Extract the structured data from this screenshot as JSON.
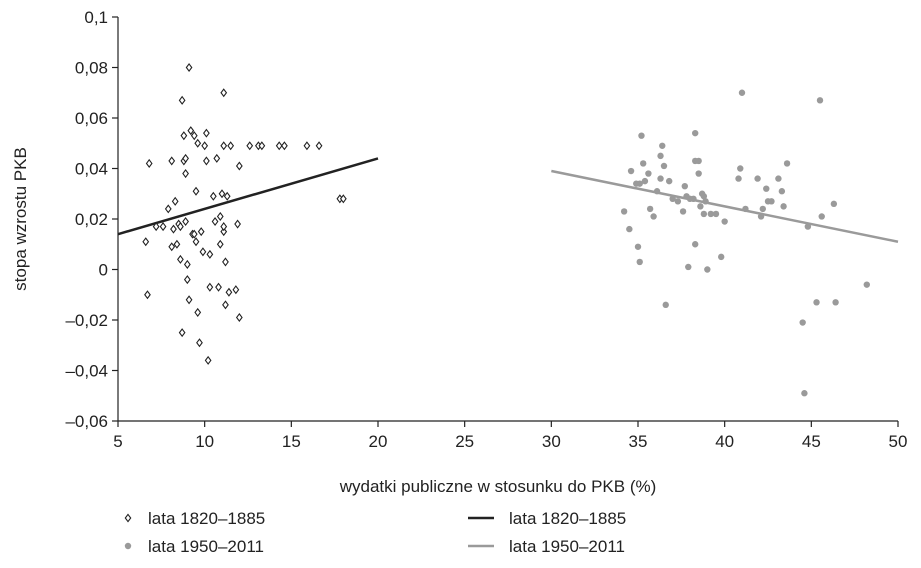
{
  "chart_data": {
    "type": "scatter",
    "title": "",
    "xlabel": "wydatki publiczne w stosunku do PKB (%)",
    "ylabel": "stopa wzrostu PKB",
    "xlim": [
      5,
      50
    ],
    "ylim": [
      -0.06,
      0.1
    ],
    "x_ticks": [
      5,
      10,
      15,
      20,
      25,
      30,
      35,
      40,
      45,
      50
    ],
    "x_tick_labels": [
      "5",
      "10",
      "15",
      "20",
      "25",
      "30",
      "35",
      "40",
      "45",
      "50"
    ],
    "y_ticks": [
      -0.06,
      -0.04,
      -0.02,
      0,
      0.02,
      0.04,
      0.06,
      0.08,
      0.1
    ],
    "y_tick_labels": [
      "–0,06",
      "–0,04",
      "–0,02",
      "0",
      "0,02",
      "0,04",
      "0,06",
      "0,08",
      "0,1"
    ],
    "grid": false,
    "legend_position": "bottom",
    "series": [
      {
        "name": "lata 1820–1885",
        "kind": "scatter",
        "marker": "diamond-open",
        "color": "#222222",
        "points": [
          [
            6.6,
            0.011
          ],
          [
            6.7,
            -0.01
          ],
          [
            6.8,
            0.042
          ],
          [
            7.2,
            0.017
          ],
          [
            7.6,
            0.017
          ],
          [
            7.9,
            0.024
          ],
          [
            8.1,
            0.043
          ],
          [
            8.1,
            0.009
          ],
          [
            8.2,
            0.016
          ],
          [
            8.3,
            0.027
          ],
          [
            8.4,
            0.01
          ],
          [
            8.5,
            0.018
          ],
          [
            8.6,
            0.004
          ],
          [
            8.6,
            0.017
          ],
          [
            8.7,
            -0.025
          ],
          [
            8.7,
            0.067
          ],
          [
            8.8,
            0.043
          ],
          [
            8.8,
            0.053
          ],
          [
            8.9,
            0.019
          ],
          [
            8.9,
            0.038
          ],
          [
            8.9,
            0.044
          ],
          [
            9.0,
            -0.004
          ],
          [
            9.0,
            0.002
          ],
          [
            9.1,
            0.08
          ],
          [
            9.1,
            -0.012
          ],
          [
            9.2,
            0.055
          ],
          [
            9.3,
            0.014
          ],
          [
            9.4,
            0.053
          ],
          [
            9.4,
            0.014
          ],
          [
            9.5,
            0.011
          ],
          [
            9.5,
            0.031
          ],
          [
            9.6,
            -0.017
          ],
          [
            9.6,
            0.05
          ],
          [
            9.7,
            -0.029
          ],
          [
            9.8,
            0.015
          ],
          [
            9.9,
            0.007
          ],
          [
            10.0,
            0.049
          ],
          [
            10.1,
            0.043
          ],
          [
            10.1,
            0.054
          ],
          [
            10.2,
            -0.036
          ],
          [
            10.3,
            -0.007
          ],
          [
            10.3,
            0.006
          ],
          [
            10.5,
            0.029
          ],
          [
            10.6,
            0.019
          ],
          [
            10.7,
            0.044
          ],
          [
            10.8,
            -0.007
          ],
          [
            10.9,
            0.01
          ],
          [
            10.9,
            0.021
          ],
          [
            11.0,
            0.03
          ],
          [
            11.1,
            0.049
          ],
          [
            11.1,
            0.07
          ],
          [
            11.1,
            0.015
          ],
          [
            11.1,
            0.017
          ],
          [
            11.2,
            0.003
          ],
          [
            11.2,
            -0.014
          ],
          [
            11.3,
            0.029
          ],
          [
            11.4,
            -0.009
          ],
          [
            11.5,
            0.049
          ],
          [
            11.8,
            -0.008
          ],
          [
            11.9,
            0.018
          ],
          [
            12.0,
            0.041
          ],
          [
            12.0,
            -0.019
          ],
          [
            12.6,
            0.049
          ],
          [
            13.1,
            0.049
          ],
          [
            13.3,
            0.049
          ],
          [
            14.3,
            0.049
          ],
          [
            14.6,
            0.049
          ],
          [
            15.9,
            0.049
          ],
          [
            16.6,
            0.049
          ],
          [
            17.8,
            0.028
          ],
          [
            18.0,
            0.028
          ]
        ]
      },
      {
        "name": "lata 1950–2011",
        "kind": "scatter",
        "marker": "circle-filled",
        "color": "#9a9a9a",
        "points": [
          [
            34.2,
            0.023
          ],
          [
            34.5,
            0.016
          ],
          [
            34.6,
            0.039
          ],
          [
            34.9,
            0.034
          ],
          [
            35.0,
            0.009
          ],
          [
            35.1,
            0.003
          ],
          [
            35.1,
            0.034
          ],
          [
            35.2,
            0.053
          ],
          [
            35.3,
            0.042
          ],
          [
            35.4,
            0.035
          ],
          [
            35.6,
            0.038
          ],
          [
            35.7,
            0.024
          ],
          [
            35.9,
            0.021
          ],
          [
            36.1,
            0.031
          ],
          [
            36.3,
            0.036
          ],
          [
            36.3,
            0.045
          ],
          [
            36.4,
            0.049
          ],
          [
            36.5,
            0.041
          ],
          [
            36.6,
            -0.014
          ],
          [
            36.8,
            0.035
          ],
          [
            37.0,
            0.028
          ],
          [
            37.3,
            0.027
          ],
          [
            37.6,
            0.023
          ],
          [
            37.7,
            0.033
          ],
          [
            37.8,
            0.029
          ],
          [
            37.9,
            0.001
          ],
          [
            38.0,
            0.028
          ],
          [
            38.2,
            0.028
          ],
          [
            38.3,
            0.054
          ],
          [
            38.3,
            0.043
          ],
          [
            38.3,
            0.01
          ],
          [
            38.5,
            0.043
          ],
          [
            38.5,
            0.038
          ],
          [
            38.6,
            0.025
          ],
          [
            38.7,
            0.03
          ],
          [
            38.8,
            0.029
          ],
          [
            38.8,
            0.022
          ],
          [
            38.9,
            0.027
          ],
          [
            39.0,
            0.0
          ],
          [
            39.2,
            0.022
          ],
          [
            39.5,
            0.022
          ],
          [
            39.8,
            0.005
          ],
          [
            40.0,
            0.019
          ],
          [
            40.8,
            0.036
          ],
          [
            40.9,
            0.04
          ],
          [
            41.0,
            0.07
          ],
          [
            41.2,
            0.024
          ],
          [
            41.9,
            0.036
          ],
          [
            42.1,
            0.021
          ],
          [
            42.2,
            0.024
          ],
          [
            42.4,
            0.032
          ],
          [
            42.5,
            0.027
          ],
          [
            42.7,
            0.027
          ],
          [
            43.1,
            0.036
          ],
          [
            43.3,
            0.031
          ],
          [
            43.4,
            0.025
          ],
          [
            43.6,
            0.042
          ],
          [
            44.5,
            -0.021
          ],
          [
            44.6,
            -0.049
          ],
          [
            44.8,
            0.017
          ],
          [
            45.3,
            -0.013
          ],
          [
            45.5,
            0.067
          ],
          [
            45.6,
            0.021
          ],
          [
            46.3,
            0.026
          ],
          [
            46.4,
            -0.013
          ],
          [
            48.2,
            -0.006
          ]
        ]
      },
      {
        "name": "lata 1820–1885",
        "kind": "line",
        "color": "#222222",
        "points": [
          [
            5,
            0.014
          ],
          [
            20,
            0.044
          ]
        ]
      },
      {
        "name": "lata 1950–2011",
        "kind": "line",
        "color": "#9a9a9a",
        "points": [
          [
            30,
            0.039
          ],
          [
            50,
            0.011
          ]
        ]
      }
    ]
  }
}
